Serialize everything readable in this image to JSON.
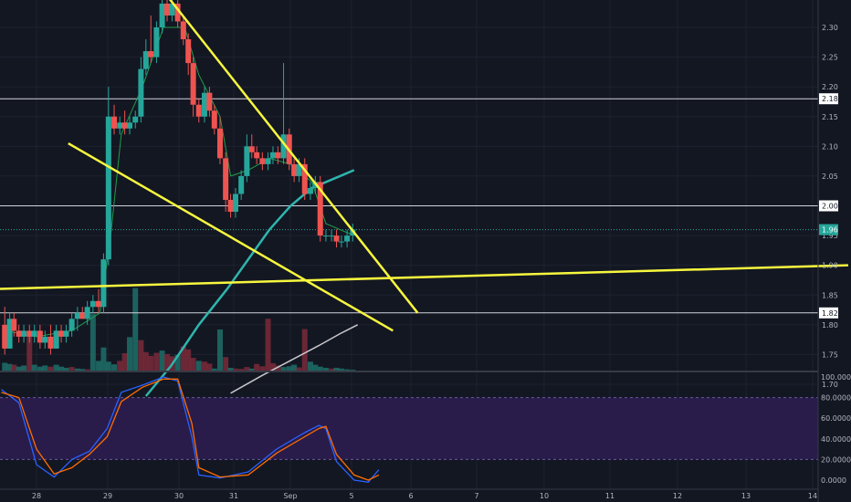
{
  "chart_data": [
    {
      "type": "candlestick",
      "title": "",
      "price_axis": {
        "range": [
          1.67,
          2.36
        ],
        "ticks": [
          "2.30",
          "2.25",
          "2.20",
          "2.15",
          "2.10",
          "2.05",
          "1.95",
          "1.90",
          "1.85",
          "1.80",
          "1.75",
          "1.70"
        ]
      },
      "date_axis": {
        "labels": [
          "28",
          "29",
          "30",
          "31",
          "Sep",
          "5",
          "6",
          "7",
          "10",
          "11",
          "12",
          "13",
          "14"
        ],
        "label_days": [
          0,
          1,
          2,
          3,
          4,
          5,
          6,
          7,
          8,
          9,
          10,
          11,
          12
        ]
      },
      "price_levels": [
        {
          "value": "2.18",
          "price": 2.18
        },
        {
          "value": "2.00",
          "price": 2.0
        },
        {
          "value": "1.82",
          "price": 1.82
        }
      ],
      "last_price": {
        "value": "1.96",
        "price": 1.96,
        "color": "#26a69a"
      },
      "candles": [
        [
          -0.45,
          1.8,
          1.83,
          1.75,
          1.76
        ],
        [
          -0.38,
          1.76,
          1.82,
          1.76,
          1.81
        ],
        [
          -0.32,
          1.81,
          1.82,
          1.78,
          1.79
        ],
        [
          -0.25,
          1.79,
          1.8,
          1.77,
          1.78
        ],
        [
          -0.18,
          1.78,
          1.8,
          1.77,
          1.79
        ],
        [
          -0.1,
          1.79,
          1.8,
          1.77,
          1.78
        ],
        [
          -0.03,
          1.78,
          1.8,
          1.77,
          1.79
        ],
        [
          0.05,
          1.79,
          1.8,
          1.76,
          1.77
        ],
        [
          0.12,
          1.77,
          1.79,
          1.76,
          1.78
        ],
        [
          0.2,
          1.78,
          1.8,
          1.75,
          1.76
        ],
        [
          0.28,
          1.76,
          1.8,
          1.76,
          1.79
        ],
        [
          0.35,
          1.79,
          1.8,
          1.77,
          1.78
        ],
        [
          0.42,
          1.78,
          1.8,
          1.77,
          1.79
        ],
        [
          0.5,
          1.79,
          1.82,
          1.78,
          1.81
        ],
        [
          0.58,
          1.81,
          1.83,
          1.79,
          1.82
        ],
        [
          0.65,
          1.82,
          1.83,
          1.81,
          1.81
        ],
        [
          0.72,
          1.81,
          1.84,
          1.8,
          1.83
        ],
        [
          0.8,
          1.83,
          1.85,
          1.82,
          1.84
        ],
        [
          0.88,
          1.84,
          1.86,
          1.82,
          1.83
        ],
        [
          0.95,
          1.83,
          1.92,
          1.82,
          1.91
        ],
        [
          1.02,
          1.91,
          2.2,
          1.9,
          2.15
        ],
        [
          1.1,
          2.15,
          2.17,
          2.12,
          2.13
        ],
        [
          1.18,
          2.13,
          2.15,
          2.12,
          2.14
        ],
        [
          1.25,
          2.14,
          2.16,
          2.12,
          2.13
        ],
        [
          1.32,
          2.13,
          2.15,
          2.12,
          2.14
        ],
        [
          1.4,
          2.14,
          2.16,
          2.13,
          2.15
        ],
        [
          1.48,
          2.15,
          2.25,
          2.14,
          2.23
        ],
        [
          1.55,
          2.23,
          2.28,
          2.22,
          2.26
        ],
        [
          1.62,
          2.26,
          2.32,
          2.24,
          2.25
        ],
        [
          1.7,
          2.25,
          2.31,
          2.24,
          2.3
        ],
        [
          1.78,
          2.3,
          2.35,
          2.29,
          2.34
        ],
        [
          1.85,
          2.34,
          2.36,
          2.31,
          2.32
        ],
        [
          1.92,
          2.32,
          2.35,
          2.31,
          2.34
        ],
        [
          2.0,
          2.34,
          2.35,
          2.3,
          2.31
        ],
        [
          2.08,
          2.31,
          2.32,
          2.27,
          2.28
        ],
        [
          2.15,
          2.28,
          2.29,
          2.22,
          2.24
        ],
        [
          2.22,
          2.24,
          2.25,
          2.15,
          2.17
        ],
        [
          2.3,
          2.17,
          2.18,
          2.14,
          2.15
        ],
        [
          2.38,
          2.15,
          2.2,
          2.14,
          2.19
        ],
        [
          2.45,
          2.19,
          2.2,
          2.15,
          2.16
        ],
        [
          2.52,
          2.16,
          2.17,
          2.12,
          2.13
        ],
        [
          2.6,
          2.13,
          2.15,
          2.07,
          2.08
        ],
        [
          2.68,
          2.08,
          2.09,
          1.99,
          2.01
        ],
        [
          2.75,
          2.01,
          2.02,
          1.98,
          1.99
        ],
        [
          2.82,
          1.99,
          2.03,
          1.98,
          2.02
        ],
        [
          2.9,
          2.02,
          2.06,
          2.01,
          2.05
        ],
        [
          2.98,
          2.05,
          2.12,
          2.04,
          2.1
        ],
        [
          3.05,
          2.1,
          2.12,
          2.08,
          2.09
        ],
        [
          3.12,
          2.09,
          2.1,
          2.07,
          2.08
        ],
        [
          3.2,
          2.08,
          2.09,
          2.06,
          2.07
        ],
        [
          3.28,
          2.07,
          2.09,
          2.06,
          2.08
        ],
        [
          3.35,
          2.08,
          2.1,
          2.07,
          2.09
        ],
        [
          3.42,
          2.09,
          2.1,
          2.07,
          2.08
        ],
        [
          3.5,
          2.08,
          2.24,
          2.07,
          2.12
        ],
        [
          3.58,
          2.12,
          2.13,
          2.06,
          2.07
        ],
        [
          3.65,
          2.07,
          2.08,
          2.04,
          2.05
        ],
        [
          3.72,
          2.05,
          2.08,
          2.04,
          2.07
        ],
        [
          3.8,
          2.07,
          2.08,
          2.01,
          2.02
        ],
        [
          3.88,
          2.02,
          2.04,
          2.01,
          2.03
        ],
        [
          3.95,
          2.03,
          2.05,
          2.02,
          2.04
        ],
        [
          4.02,
          2.04,
          2.05,
          1.94,
          1.95
        ],
        [
          4.1,
          1.95,
          1.96,
          1.94,
          1.95
        ],
        [
          4.18,
          1.95,
          1.96,
          1.94,
          1.95
        ],
        [
          4.25,
          1.95,
          1.96,
          1.93,
          1.94
        ],
        [
          4.32,
          1.94,
          1.95,
          1.93,
          1.94
        ],
        [
          4.4,
          1.94,
          1.96,
          1.93,
          1.95
        ],
        [
          4.48,
          1.95,
          1.97,
          1.94,
          1.96
        ]
      ],
      "volume_bars": [
        [
          -0.45,
          0.25,
          "up"
        ],
        [
          -0.38,
          0.22,
          "up"
        ],
        [
          -0.32,
          0.2,
          "down"
        ],
        [
          -0.25,
          0.15,
          "up"
        ],
        [
          -0.18,
          0.18,
          "up"
        ],
        [
          -0.1,
          1.0,
          "down"
        ],
        [
          -0.03,
          0.2,
          "up"
        ],
        [
          0.05,
          0.15,
          "up"
        ],
        [
          0.12,
          0.18,
          "up"
        ],
        [
          0.2,
          0.15,
          "down"
        ],
        [
          0.28,
          0.2,
          "up"
        ],
        [
          0.35,
          0.15,
          "up"
        ],
        [
          0.42,
          0.12,
          "up"
        ],
        [
          0.5,
          0.14,
          "down"
        ],
        [
          0.58,
          0.1,
          "up"
        ],
        [
          0.65,
          0.09,
          "up"
        ],
        [
          0.72,
          0.08,
          "down"
        ],
        [
          0.8,
          1.52,
          "up"
        ],
        [
          0.88,
          0.3,
          "up"
        ],
        [
          0.95,
          0.65,
          "up"
        ],
        [
          1.02,
          0.28,
          "up"
        ],
        [
          1.1,
          0.21,
          "up"
        ],
        [
          1.18,
          0.3,
          "down"
        ],
        [
          1.25,
          0.5,
          "down"
        ],
        [
          1.32,
          0.92,
          "up"
        ],
        [
          1.4,
          2.2,
          "up"
        ],
        [
          1.48,
          0.84,
          "down"
        ],
        [
          1.55,
          0.53,
          "down"
        ],
        [
          1.62,
          0.43,
          "down"
        ],
        [
          1.7,
          0.51,
          "down"
        ],
        [
          1.78,
          0.57,
          "up"
        ],
        [
          1.85,
          0.48,
          "down"
        ],
        [
          1.92,
          0.42,
          "down"
        ],
        [
          2.0,
          0.46,
          "up"
        ],
        [
          2.08,
          0.68,
          "down"
        ],
        [
          2.15,
          0.6,
          "down"
        ],
        [
          2.22,
          0.38,
          "down"
        ],
        [
          2.3,
          0.3,
          "up"
        ],
        [
          2.38,
          0.28,
          "down"
        ],
        [
          2.45,
          0.23,
          "down"
        ],
        [
          2.52,
          0.1,
          "up"
        ],
        [
          2.6,
          1.12,
          "up"
        ],
        [
          2.68,
          0.4,
          "down"
        ],
        [
          2.75,
          0.12,
          "up"
        ],
        [
          2.82,
          0.1,
          "down"
        ],
        [
          2.9,
          0.09,
          "down"
        ],
        [
          2.98,
          0.14,
          "down"
        ],
        [
          3.05,
          0.1,
          "up"
        ],
        [
          3.12,
          0.22,
          "down"
        ],
        [
          3.2,
          0.16,
          "down"
        ],
        [
          3.28,
          1.4,
          "down"
        ],
        [
          3.35,
          0.24,
          "down"
        ],
        [
          3.42,
          0.18,
          "down"
        ],
        [
          3.5,
          0.14,
          "up"
        ],
        [
          3.58,
          0.16,
          "up"
        ],
        [
          3.65,
          0.2,
          "up"
        ],
        [
          3.72,
          0.13,
          "down"
        ],
        [
          3.8,
          1.13,
          "down"
        ],
        [
          3.88,
          0.28,
          "up"
        ],
        [
          3.95,
          0.2,
          "up"
        ],
        [
          4.02,
          0.15,
          "up"
        ],
        [
          4.1,
          0.12,
          "up"
        ],
        [
          4.18,
          0.1,
          "down"
        ],
        [
          4.25,
          0.12,
          "up"
        ],
        [
          4.32,
          0.1,
          "up"
        ],
        [
          4.4,
          0.08,
          "up"
        ],
        [
          4.48,
          0.07,
          "up"
        ]
      ],
      "indicators": [
        {
          "type": "ma-short",
          "color": "#1e9e4b",
          "points": [
            [
              -0.45,
              1.79
            ],
            [
              0.0,
              1.78
            ],
            [
              0.5,
              1.79
            ],
            [
              0.9,
              1.82
            ],
            [
              1.05,
              1.95
            ],
            [
              1.2,
              2.12
            ],
            [
              1.5,
              2.2
            ],
            [
              1.8,
              2.3
            ],
            [
              2.1,
              2.3
            ],
            [
              2.3,
              2.22
            ],
            [
              2.6,
              2.15
            ],
            [
              2.75,
              2.05
            ],
            [
              3.0,
              2.06
            ],
            [
              3.3,
              2.08
            ],
            [
              3.6,
              2.07
            ],
            [
              3.9,
              2.04
            ],
            [
              4.1,
              1.97
            ],
            [
              4.5,
              1.95
            ]
          ]
        },
        {
          "type": "ma-long",
          "color": "#2fb5ad",
          "points": [
            [
              1.55,
              1.68
            ],
            [
              1.9,
              1.73
            ],
            [
              2.3,
              1.8
            ],
            [
              2.7,
              1.86
            ],
            [
              3.0,
              1.91
            ],
            [
              3.3,
              1.96
            ],
            [
              3.6,
              2.0
            ],
            [
              3.9,
              2.03
            ],
            [
              4.2,
              2.045
            ],
            [
              4.5,
              2.06
            ]
          ]
        },
        {
          "type": "volume-ma",
          "color": "#c9c9cc",
          "points": [
            [
              2.75,
              1.685
            ],
            [
              3.2,
              1.715
            ],
            [
              3.6,
              1.74
            ],
            [
              4.0,
              1.765
            ],
            [
              4.3,
              1.785
            ],
            [
              4.55,
              1.8
            ]
          ]
        }
      ],
      "trendlines": [
        {
          "color": "#f7f73e",
          "points": [
            [
              1.67,
              2.38
            ],
            [
              5.4,
              1.82
            ]
          ]
        },
        {
          "color": "#f7f73e",
          "points": [
            [
              0.45,
              2.105
            ],
            [
              5.05,
              1.79
            ]
          ]
        },
        {
          "color": "#f7f73e",
          "points": [
            [
              -0.6,
              1.86
            ],
            [
              11.5,
              1.9
            ]
          ]
        }
      ]
    },
    {
      "type": "line",
      "title": "",
      "panel": "stochastic-oscillator",
      "y_ticks": [
        "100.0000",
        "80.0000",
        "60.0000",
        "40.0000",
        "20.0000",
        "0.0000"
      ],
      "ylim": [
        -5,
        103
      ],
      "band": [
        20,
        80
      ],
      "series": [
        {
          "color": "#2962ff",
          "points": [
            [
              -0.5,
              88
            ],
            [
              -0.25,
              75
            ],
            [
              0,
              15
            ],
            [
              0.25,
              3
            ],
            [
              0.5,
              20
            ],
            [
              0.75,
              28
            ],
            [
              1.0,
              50
            ],
            [
              1.2,
              85
            ],
            [
              1.5,
              92
            ],
            [
              1.8,
              100
            ],
            [
              2.0,
              96
            ],
            [
              2.2,
              42
            ],
            [
              2.3,
              5
            ],
            [
              2.6,
              2
            ],
            [
              3.0,
              8
            ],
            [
              3.4,
              30
            ],
            [
              3.8,
              46
            ],
            [
              4.0,
              53
            ],
            [
              4.1,
              50
            ],
            [
              4.25,
              18
            ],
            [
              4.5,
              0
            ],
            [
              4.7,
              -2
            ],
            [
              4.85,
              10
            ]
          ]
        },
        {
          "color": "#ff6d00",
          "points": [
            [
              -0.5,
              85
            ],
            [
              -0.25,
              80
            ],
            [
              0,
              30
            ],
            [
              0.25,
              6
            ],
            [
              0.5,
              12
            ],
            [
              0.75,
              25
            ],
            [
              1.0,
              42
            ],
            [
              1.2,
              76
            ],
            [
              1.5,
              90
            ],
            [
              1.8,
              98
            ],
            [
              2.0,
              98
            ],
            [
              2.2,
              55
            ],
            [
              2.3,
              12
            ],
            [
              2.6,
              3
            ],
            [
              3.0,
              5
            ],
            [
              3.4,
              26
            ],
            [
              3.8,
              42
            ],
            [
              4.0,
              50
            ],
            [
              4.1,
              52
            ],
            [
              4.25,
              25
            ],
            [
              4.5,
              5
            ],
            [
              4.7,
              0
            ],
            [
              4.85,
              5
            ]
          ]
        }
      ]
    }
  ]
}
